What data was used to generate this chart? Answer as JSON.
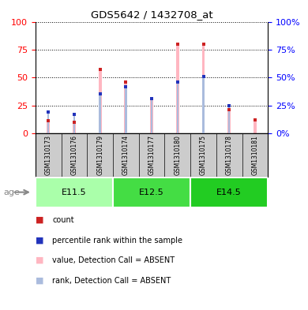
{
  "title": "GDS5642 / 1432708_at",
  "samples": [
    "GSM1310173",
    "GSM1310176",
    "GSM1310179",
    "GSM1310174",
    "GSM1310177",
    "GSM1310180",
    "GSM1310175",
    "GSM1310178",
    "GSM1310181"
  ],
  "value_absent": [
    11,
    10,
    57,
    46,
    31,
    80,
    80,
    21,
    12
  ],
  "rank_absent": [
    19,
    17,
    35,
    42,
    31,
    46,
    51,
    25,
    0
  ],
  "count_values": [
    11,
    10,
    57,
    46,
    31,
    80,
    80,
    21,
    12
  ],
  "percentile_values": [
    19,
    17,
    35,
    42,
    31,
    46,
    51,
    25,
    0
  ],
  "ylim": [
    0,
    100
  ],
  "yticks": [
    0,
    25,
    50,
    75,
    100
  ],
  "bar_color_absent": "#FFB6C1",
  "rank_color_absent": "#AABBDD",
  "count_color": "#CC2222",
  "percentile_color": "#2233BB",
  "age_labels": [
    "E11.5",
    "E12.5",
    "E14.5"
  ],
  "age_colors": [
    "#AAFFAA",
    "#44DD44",
    "#22CC22"
  ],
  "age_starts": [
    0,
    3,
    6
  ],
  "age_ends": [
    2,
    5,
    8
  ],
  "legend_items": [
    {
      "color": "#CC2222",
      "label": "count"
    },
    {
      "color": "#2233BB",
      "label": "percentile rank within the sample"
    },
    {
      "color": "#FFB6C1",
      "label": "value, Detection Call = ABSENT"
    },
    {
      "color": "#AABBDD",
      "label": "rank, Detection Call = ABSENT"
    }
  ]
}
